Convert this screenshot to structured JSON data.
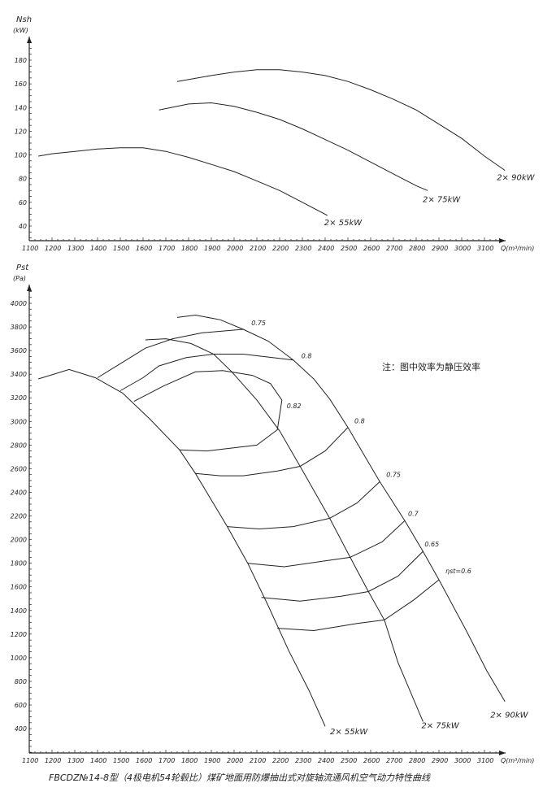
{
  "chart_data": [
    {
      "type": "line",
      "ylabel": "Nsh",
      "yunit": "(kW)",
      "xlabel": "Q(m³/min)",
      "xlim": [
        1100,
        3100
      ],
      "ylim": [
        30,
        180
      ],
      "xticks": [
        1100,
        1200,
        1300,
        1400,
        1500,
        1600,
        1700,
        1800,
        1900,
        2000,
        2100,
        2200,
        2300,
        2400,
        2500,
        2600,
        2700,
        2800,
        2900,
        3000,
        3100
      ],
      "yticks": [
        40,
        60,
        80,
        100,
        120,
        140,
        160,
        180
      ],
      "grid": false,
      "series": [
        {
          "name": "2× 55kW",
          "x": [
            1140,
            1200,
            1300,
            1400,
            1500,
            1600,
            1700,
            1800,
            1900,
            2000,
            2100,
            2200,
            2300,
            2410
          ],
          "y": [
            99,
            101,
            103,
            105,
            106,
            106,
            103,
            98,
            92,
            86,
            78,
            70,
            60,
            49
          ]
        },
        {
          "name": "2× 75kW",
          "x": [
            1670,
            1800,
            1900,
            2000,
            2100,
            2200,
            2300,
            2400,
            2500,
            2600,
            2700,
            2800,
            2850
          ],
          "y": [
            138,
            143,
            144,
            141,
            136,
            130,
            122,
            113,
            104,
            94,
            84,
            74,
            70
          ]
        },
        {
          "name": "2× 90kW",
          "x": [
            1750,
            1900,
            2000,
            2100,
            2200,
            2300,
            2400,
            2500,
            2600,
            2700,
            2800,
            2900,
            3000,
            3100,
            3190
          ],
          "y": [
            162,
            167,
            170,
            172,
            172,
            170,
            167,
            162,
            155,
            147,
            138,
            126,
            114,
            99,
            87
          ]
        }
      ]
    },
    {
      "type": "line",
      "ylabel": "Pst",
      "yunit": "(Pa)",
      "xlabel": "Q(m³/min)",
      "xlim": [
        1100,
        3100
      ],
      "ylim": [
        200,
        4000
      ],
      "xticks": [
        1100,
        1200,
        1300,
        1400,
        1500,
        1600,
        1700,
        1800,
        1900,
        2000,
        2100,
        2200,
        2300,
        2400,
        2500,
        2600,
        2700,
        2800,
        2900,
        3000,
        3100
      ],
      "yticks": [
        400,
        600,
        800,
        1000,
        1200,
        1400,
        1600,
        1800,
        2000,
        2200,
        2400,
        2600,
        2800,
        3000,
        3200,
        3400,
        3600,
        3800,
        4000
      ],
      "grid": false,
      "note": "注：图中效率为静压效率",
      "series": [
        {
          "name": "2× 55kW",
          "x": [
            1140,
            1275,
            1390,
            1510,
            1630,
            1760,
            1830,
            1970,
            2060,
            2150,
            2240,
            2330,
            2400
          ],
          "y": [
            3360,
            3440,
            3370,
            3240,
            3020,
            2760,
            2560,
            2110,
            1800,
            1440,
            1060,
            720,
            420
          ]
        },
        {
          "name": "2× 75kW",
          "x": [
            1610,
            1700,
            1810,
            1910,
            1990,
            2100,
            2200,
            2290,
            2420,
            2510,
            2590,
            2660,
            2720,
            2830
          ],
          "y": [
            3690,
            3700,
            3660,
            3570,
            3420,
            3180,
            2920,
            2620,
            2180,
            1850,
            1560,
            1320,
            960,
            460
          ]
        },
        {
          "name": "2× 90kW",
          "x": [
            1750,
            1830,
            1940,
            2040,
            2150,
            2260,
            2350,
            2420,
            2500,
            2640,
            2750,
            2830,
            2900,
            3020,
            3110,
            3190
          ],
          "y": [
            3880,
            3900,
            3860,
            3780,
            3680,
            3520,
            3360,
            3190,
            2950,
            2490,
            2160,
            1900,
            1660,
            1230,
            890,
            630
          ]
        }
      ],
      "efficiency_curves": [
        {
          "label": "0.75",
          "x": [
            1400,
            1510,
            1610,
            1730,
            1860,
            2040
          ],
          "y": [
            3370,
            3500,
            3620,
            3700,
            3750,
            3780
          ]
        },
        {
          "label": "0.8",
          "x": [
            1500,
            1600,
            1670,
            1790,
            1910,
            2040,
            2260
          ],
          "y": [
            3260,
            3370,
            3470,
            3540,
            3570,
            3570,
            3520
          ]
        },
        {
          "label": "0.82",
          "x": [
            1560,
            1690,
            1830,
            1950,
            2080,
            2160,
            2210,
            2190,
            2100,
            1880,
            1760
          ],
          "y": [
            3170,
            3300,
            3420,
            3430,
            3390,
            3320,
            3180,
            2930,
            2800,
            2750,
            2760
          ]
        },
        {
          "label": "0.8",
          "x": [
            1830,
            1940,
            2040,
            2190,
            2290,
            2400,
            2500
          ],
          "y": [
            2560,
            2540,
            2540,
            2580,
            2620,
            2750,
            2950
          ]
        },
        {
          "label": "0.75",
          "x": [
            1970,
            2110,
            2260,
            2420,
            2540,
            2640
          ],
          "y": [
            2110,
            2090,
            2110,
            2180,
            2310,
            2490
          ]
        },
        {
          "label": "0.7",
          "x": [
            2060,
            2220,
            2400,
            2510,
            2650,
            2750
          ],
          "y": [
            1800,
            1770,
            1820,
            1850,
            1980,
            2160
          ]
        },
        {
          "label": "0.65",
          "x": [
            2120,
            2290,
            2470,
            2590,
            2720,
            2830
          ],
          "y": [
            1510,
            1480,
            1520,
            1560,
            1690,
            1900
          ]
        },
        {
          "label": "ηst=0.6",
          "x": [
            2190,
            2350,
            2540,
            2660,
            2790,
            2900
          ],
          "y": [
            1250,
            1230,
            1290,
            1320,
            1490,
            1660
          ]
        }
      ]
    }
  ],
  "caption": "FBCDZ№14-8型（4极电机54轮毂比）煤矿地面用防爆抽出式对旋轴流通风机空气动力特性曲线"
}
